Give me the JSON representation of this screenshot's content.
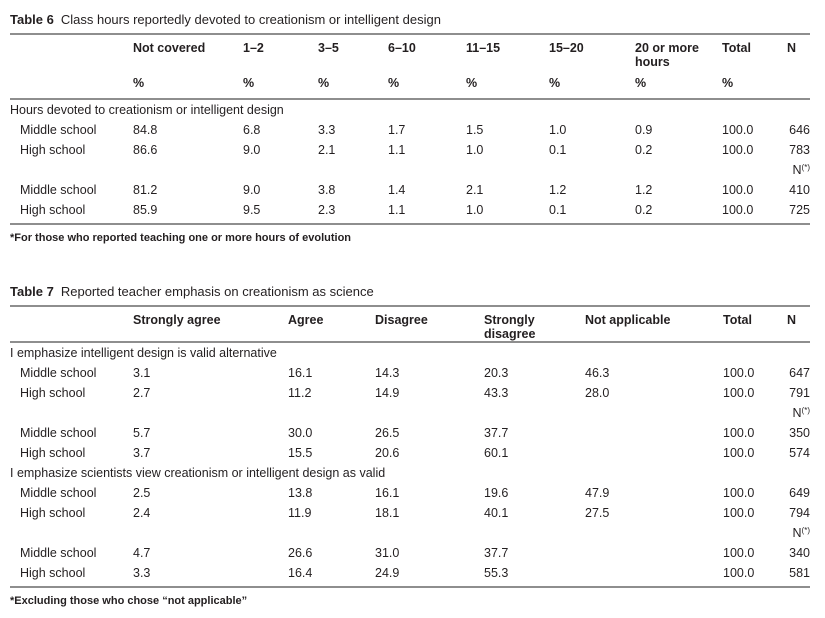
{
  "page": {
    "background_color": "#ffffff",
    "text_color": "#231f20",
    "rule_color": "#8e8e8e"
  },
  "tables": [
    {
      "label": "Table 6",
      "caption": "Class hours reportedly devoted to creationism or intelligent design",
      "columns": [
        {
          "header": "Not covered",
          "unit": "%"
        },
        {
          "header": "1–2",
          "unit": "%"
        },
        {
          "header": "3–5",
          "unit": "%"
        },
        {
          "header": "6–10",
          "unit": "%"
        },
        {
          "header": "11–15",
          "unit": "%"
        },
        {
          "header": "15–20",
          "unit": "%"
        },
        {
          "header": "20 or more hours",
          "unit": "%"
        },
        {
          "header": "Total",
          "unit": "%"
        },
        {
          "header": "N",
          "unit": ""
        }
      ],
      "rows": [
        {
          "type": "section",
          "label": "Hours devoted to creationism or intelligent design"
        },
        {
          "type": "data",
          "label": "Middle school",
          "values": [
            "84.8",
            "6.8",
            "3.3",
            "1.7",
            "1.5",
            "1.0",
            "0.9",
            "100.0",
            "646"
          ]
        },
        {
          "type": "data",
          "label": "High school",
          "values": [
            "86.6",
            "9.0",
            "2.1",
            "1.1",
            "1.0",
            "0.1",
            "0.2",
            "100.0",
            "783"
          ]
        },
        {
          "type": "nmark",
          "n_text": "N",
          "n_sup": "(*)"
        },
        {
          "type": "data",
          "label": "Middle school",
          "values": [
            "81.2",
            "9.0",
            "3.8",
            "1.4",
            "2.1",
            "1.2",
            "1.2",
            "100.0",
            "410"
          ]
        },
        {
          "type": "data",
          "label": "High school",
          "values": [
            "85.9",
            "9.5",
            "2.3",
            "1.1",
            "1.0",
            "0.1",
            "0.2",
            "100.0",
            "725"
          ]
        }
      ],
      "footnote": "*For those who reported teaching one or more hours of evolution"
    },
    {
      "label": "Table 7",
      "caption": "Reported teacher emphasis on creationism as science",
      "columns": [
        {
          "header": "Strongly agree",
          "unit": ""
        },
        {
          "header": "Agree",
          "unit": ""
        },
        {
          "header": "Disagree",
          "unit": ""
        },
        {
          "header": "Strongly disagree",
          "unit": ""
        },
        {
          "header": "Not applicable",
          "unit": ""
        },
        {
          "header": "Total",
          "unit": ""
        },
        {
          "header": "N",
          "unit": ""
        }
      ],
      "rows": [
        {
          "type": "section",
          "label": "I emphasize intelligent design is valid alternative"
        },
        {
          "type": "data",
          "label": "Middle school",
          "values": [
            "3.1",
            "16.1",
            "14.3",
            "20.3",
            "46.3",
            "100.0",
            "647"
          ]
        },
        {
          "type": "data",
          "label": "High school",
          "values": [
            "2.7",
            "11.2",
            "14.9",
            "43.3",
            "28.0",
            "100.0",
            "791"
          ]
        },
        {
          "type": "nmark",
          "n_text": "N",
          "n_sup": "(*)"
        },
        {
          "type": "data",
          "label": "Middle school",
          "values": [
            "5.7",
            "30.0",
            "26.5",
            "37.7",
            "",
            "100.0",
            "350"
          ]
        },
        {
          "type": "data",
          "label": "High school",
          "values": [
            "3.7",
            "15.5",
            "20.6",
            "60.1",
            "",
            "100.0",
            "574"
          ]
        },
        {
          "type": "section",
          "label": "I emphasize scientists view creationism or intelligent design as valid"
        },
        {
          "type": "data",
          "label": "Middle school",
          "values": [
            "2.5",
            "13.8",
            "16.1",
            "19.6",
            "47.9",
            "100.0",
            "649"
          ]
        },
        {
          "type": "data",
          "label": "High school",
          "values": [
            "2.4",
            "11.9",
            "18.1",
            "40.1",
            "27.5",
            "100.0",
            "794"
          ]
        },
        {
          "type": "nmark",
          "n_text": "N",
          "n_sup": "(*)"
        },
        {
          "type": "data",
          "label": "Middle school",
          "values": [
            "4.7",
            "26.6",
            "31.0",
            "37.7",
            "",
            "100.0",
            "340"
          ]
        },
        {
          "type": "data",
          "label": "High school",
          "values": [
            "3.3",
            "16.4",
            "24.9",
            "55.3",
            "",
            "100.0",
            "581"
          ]
        }
      ],
      "footnote": "*Excluding those who chose “not applicable”"
    }
  ]
}
